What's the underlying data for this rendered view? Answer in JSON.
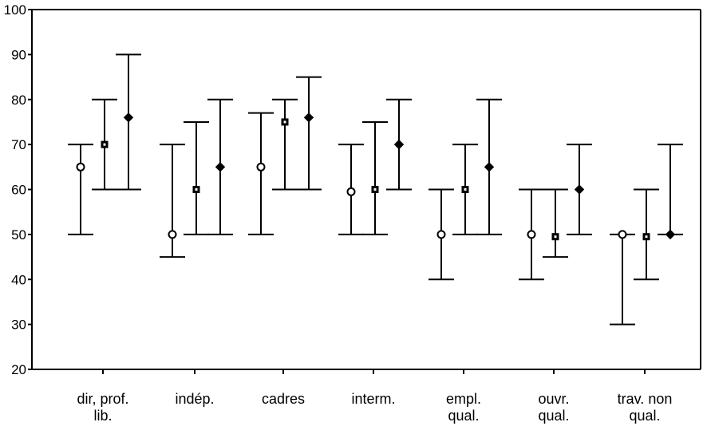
{
  "chart_data": {
    "type": "errorbar",
    "title": "",
    "xlabel": "",
    "ylabel": "",
    "ylim": [
      20,
      100
    ],
    "yticks": [
      "20",
      "30",
      "40",
      "50",
      "60",
      "70",
      "80",
      "90",
      "100"
    ],
    "grid": false,
    "categories": [
      [
        "dir, prof.",
        "lib."
      ],
      [
        "indép."
      ],
      [
        "cadres"
      ],
      [
        "interm."
      ],
      [
        "empl.",
        "qual."
      ],
      [
        "ouvr.",
        "qual."
      ],
      [
        "trav. non",
        "qual."
      ]
    ],
    "series": [
      {
        "marker": "circle",
        "values": [
          65,
          50,
          65,
          59.5,
          50,
          50,
          50
        ],
        "low": [
          50,
          45,
          50,
          50,
          40,
          40,
          30
        ],
        "high": [
          70,
          70,
          77,
          70,
          60,
          60,
          50
        ]
      },
      {
        "marker": "square",
        "values": [
          70,
          60,
          75,
          60,
          60,
          49.5,
          49.5
        ],
        "low": [
          60,
          50,
          60,
          50,
          50,
          45,
          40
        ],
        "high": [
          80,
          75,
          80,
          75,
          70,
          60,
          60
        ]
      },
      {
        "marker": "diamond",
        "values": [
          76,
          65,
          76,
          70,
          65,
          60,
          50
        ],
        "low": [
          60,
          50,
          60,
          60,
          50,
          50,
          50
        ],
        "high": [
          90,
          80,
          85,
          80,
          80,
          70,
          70
        ]
      }
    ]
  }
}
